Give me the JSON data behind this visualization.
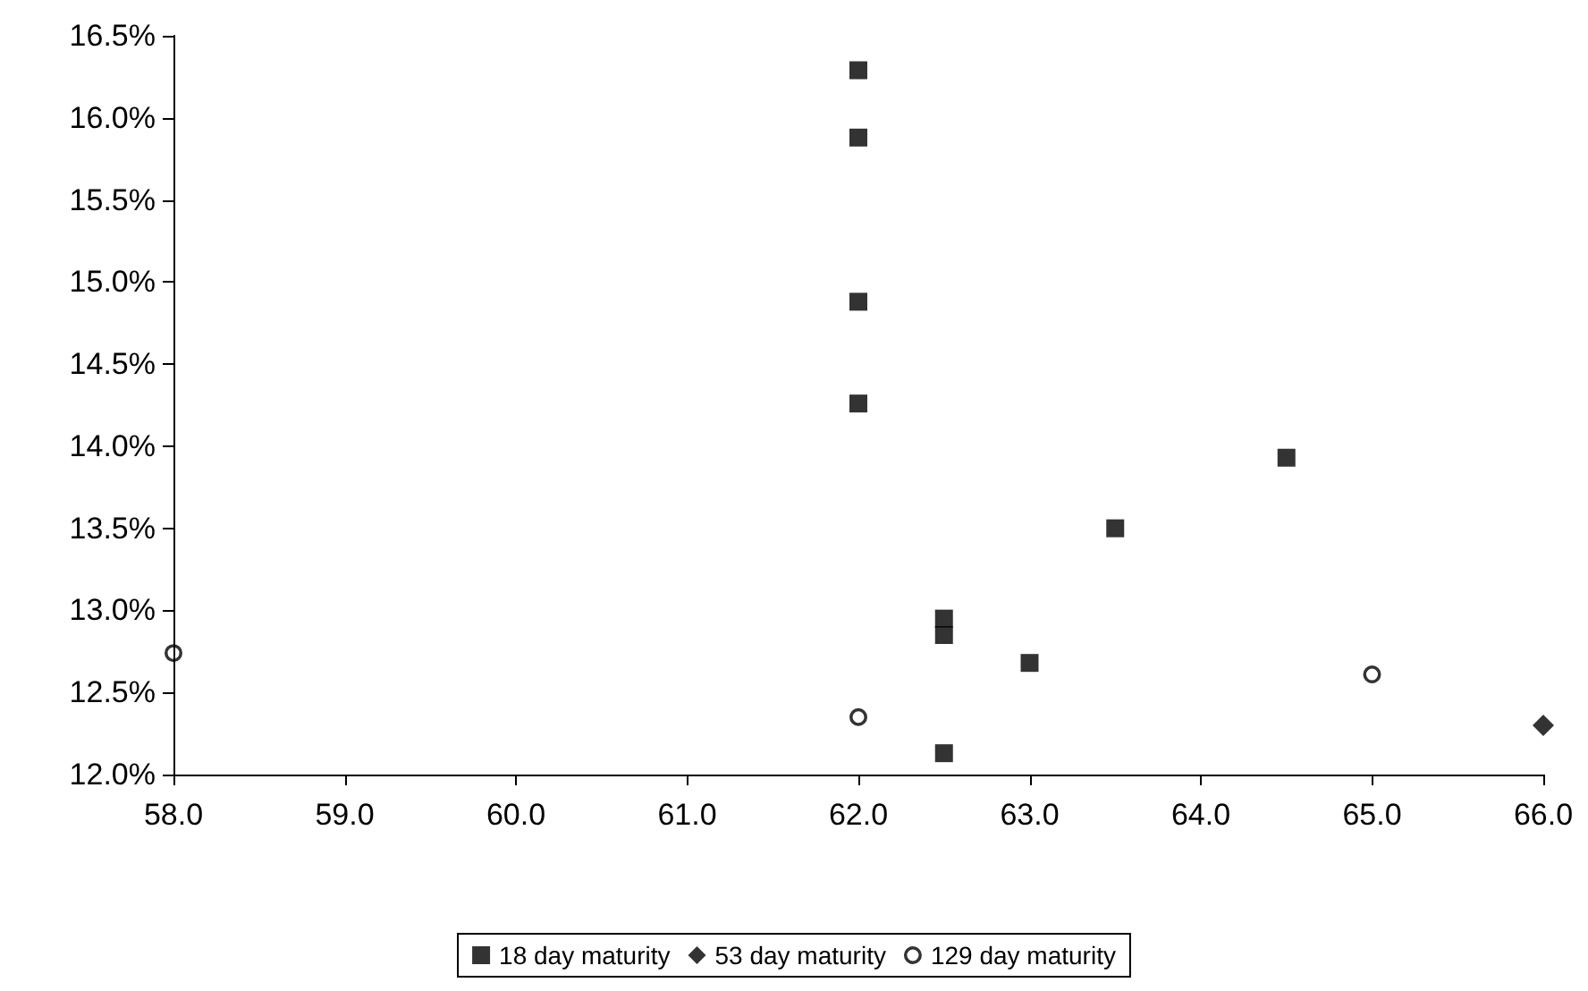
{
  "chart_data": {
    "type": "scatter",
    "xlim": [
      58,
      66
    ],
    "xticks": [
      {
        "value": 58,
        "label": "58.0"
      },
      {
        "value": 59,
        "label": "59.0"
      },
      {
        "value": 60,
        "label": "60.0"
      },
      {
        "value": 61,
        "label": "61.0"
      },
      {
        "value": 62,
        "label": "62.0"
      },
      {
        "value": 63,
        "label": "63.0"
      },
      {
        "value": 64,
        "label": "64.0"
      },
      {
        "value": 65,
        "label": "65.0"
      },
      {
        "value": 66,
        "label": "66.0"
      }
    ],
    "ylim": [
      12,
      16.5
    ],
    "yticks": [
      {
        "value": 12,
        "label": "12.0%"
      },
      {
        "value": 12.5,
        "label": "12.5%"
      },
      {
        "value": 13,
        "label": "13.0%"
      },
      {
        "value": 13.5,
        "label": "13.5%"
      },
      {
        "value": 14,
        "label": "14.0%"
      },
      {
        "value": 14.5,
        "label": "14.5%"
      },
      {
        "value": 15,
        "label": "15.0%"
      },
      {
        "value": 15.5,
        "label": "15.5%"
      },
      {
        "value": 16,
        "label": "16.0%"
      },
      {
        "value": 16.5,
        "label": "16.5%"
      }
    ],
    "grid": false,
    "legend": "bottom",
    "series": [
      {
        "name": "18 day maturity",
        "color": "#000000",
        "marker": "square",
        "x": [
          62,
          62,
          62,
          62,
          64.5,
          63.5,
          62.5,
          62.5,
          63,
          62.5
        ],
        "values": [
          16.29,
          15.88,
          14.88,
          14.26,
          13.93,
          13.5,
          12.95,
          12.85,
          12.68,
          12.13
        ]
      },
      {
        "name": "53 day maturity",
        "color": "#000000",
        "marker": "diamond",
        "x": [
          66
        ],
        "values": [
          12.3
        ]
      },
      {
        "name": "129 day maturity",
        "color": "#000000",
        "marker": "circle",
        "x": [
          58,
          62,
          65
        ],
        "values": [
          12.74,
          12.35,
          12.61
        ]
      }
    ]
  }
}
